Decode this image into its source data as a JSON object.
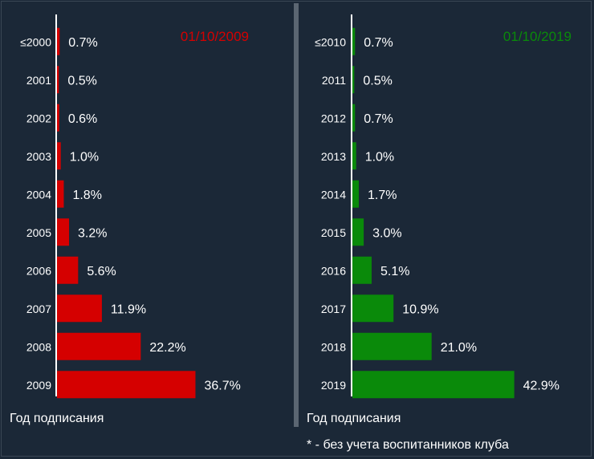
{
  "chart_data": [
    {
      "type": "bar",
      "orientation": "horizontal",
      "title": "01/10/2009",
      "title_color": "#d50000",
      "bar_color": "#d50000",
      "xlabel": "Год подписания",
      "categories": [
        "≤2000",
        "2001",
        "2002",
        "2003",
        "2004",
        "2005",
        "2006",
        "2007",
        "2008",
        "2009"
      ],
      "values": [
        0.7,
        0.5,
        0.6,
        1.0,
        1.8,
        3.2,
        5.6,
        11.9,
        22.2,
        36.7
      ],
      "value_labels": [
        "0.7%",
        "0.5%",
        "0.6%",
        "1.0%",
        "1.8%",
        "3.2%",
        "5.6%",
        "11.9%",
        "22.2%",
        "36.7%"
      ],
      "xlim": [
        0,
        50
      ]
    },
    {
      "type": "bar",
      "orientation": "horizontal",
      "title": "01/10/2019",
      "title_color": "#0a8a0a",
      "bar_color": "#0a8a0a",
      "xlabel": "Год подписания",
      "categories": [
        "≤2010",
        "2011",
        "2012",
        "2013",
        "2014",
        "2015",
        "2016",
        "2017",
        "2018",
        "2019"
      ],
      "values": [
        0.7,
        0.5,
        0.7,
        1.0,
        1.7,
        3.0,
        5.1,
        10.9,
        21.0,
        42.9
      ],
      "value_labels": [
        "0.7%",
        "0.5%",
        "0.7%",
        "1.0%",
        "1.7%",
        "3.0%",
        "5.1%",
        "10.9%",
        "21.0%",
        "42.9%"
      ],
      "xlim": [
        0,
        50
      ]
    }
  ],
  "footnote": "* - без учета воспитанников клуба",
  "colors": {
    "background": "#1b2837",
    "divider": "#5b6672",
    "text": "#ffffff"
  }
}
